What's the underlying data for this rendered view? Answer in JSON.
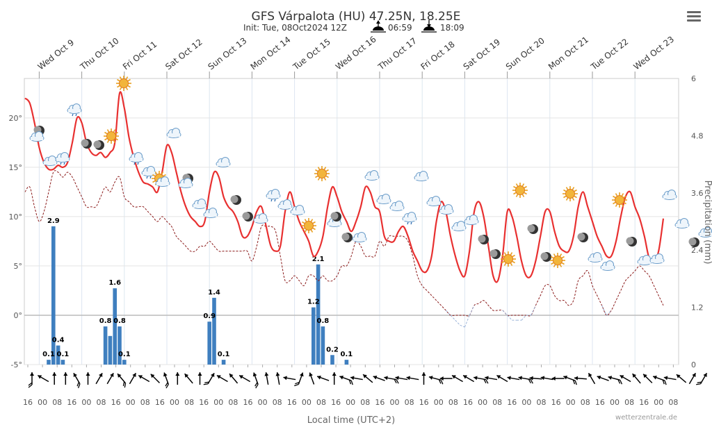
{
  "header": {
    "title": "GFS Várpalota (HU) 47.25N, 18.25E",
    "init": "Init: Tue, 08Oct2024 12Z",
    "sunrise": "06:59",
    "sunset": "18:09"
  },
  "footer": {
    "xlabel": "Local time (UTC+2)",
    "credit": "wetterzentrale.de"
  },
  "chart_data": {
    "type": "line",
    "title": "GFS Várpalota (HU) 47.25N, 18.25E",
    "xlabel": "Local time (UTC+2)",
    "ylabel_right": "Precipitation (mm)",
    "days": [
      "Wed Oct 9",
      "Thu Oct 10",
      "Fri Oct 11",
      "Sat Oct 12",
      "Sun Oct 13",
      "Mon Oct 14",
      "Tue Oct 15",
      "Wed Oct 16",
      "Thu Oct 17",
      "Fri Oct 18",
      "Sat Oct 19",
      "Sun Oct 20",
      "Mon Oct 21",
      "Tue Oct 22",
      "Wed Oct 23"
    ],
    "x_ticks": [
      "16",
      "00",
      "08",
      "16",
      "00",
      "08",
      "16",
      "00",
      "08",
      "16",
      "00",
      "08",
      "16",
      "00",
      "08",
      "16",
      "00",
      "08",
      "16",
      "00",
      "08",
      "16",
      "00",
      "08",
      "16",
      "00",
      "08",
      "16",
      "00",
      "08",
      "16",
      "00",
      "08",
      "16",
      "00",
      "08",
      "16",
      "00",
      "08",
      "16",
      "00",
      "08",
      "16",
      "00",
      "08"
    ],
    "temp_ticks": [
      "20°",
      "15°",
      "10°",
      "5°",
      "0°",
      "-5°"
    ],
    "temp_range": [
      -5,
      24
    ],
    "precip_ticks": [
      "6",
      "4.8",
      "3.6",
      "2.4",
      "1.2",
      "0"
    ],
    "precip_range": [
      0,
      6
    ],
    "series": [
      {
        "name": "Temperature",
        "values": [
          22,
          21.5,
          19.5,
          17,
          15.5,
          14.8,
          14.8,
          15.2,
          15,
          15.5,
          17.5,
          20,
          19.5,
          17.5,
          16.5,
          16.2,
          16.5,
          16,
          16.5,
          17.5,
          22.5,
          21,
          18,
          16,
          14.5,
          13.5,
          13.3,
          13,
          12.5,
          14.5,
          17.2,
          16.5,
          14.5,
          12.5,
          11,
          10,
          9.5,
          9,
          9.5,
          12.5,
          14.5,
          14,
          12,
          11,
          10.5,
          9.5,
          8,
          8,
          9,
          10.5,
          11,
          9,
          7,
          6.5,
          7,
          10.5,
          12.5,
          11,
          9.5,
          8.5,
          7.5,
          6,
          6.5,
          8,
          11,
          13,
          12,
          10.5,
          9.5,
          8.5,
          9.5,
          11,
          13,
          12.5,
          11,
          10.5,
          8,
          7.5,
          7.5,
          8.5,
          9,
          8,
          6.5,
          5.5,
          4.5,
          4.5,
          6,
          9.5,
          11.5,
          10.5,
          8,
          6,
          4.5,
          4,
          6.5,
          10.5,
          11.5,
          10,
          7,
          4,
          3.5,
          6,
          10.5,
          10,
          8,
          5.5,
          4,
          4,
          5.5,
          8,
          10.5,
          10.5,
          8.5,
          7,
          6.5,
          6.5,
          8,
          11,
          12.5,
          11,
          9.5,
          8,
          7,
          6,
          6,
          7.5,
          10,
          12,
          12.5,
          11,
          9.8,
          8,
          5.8,
          5.5,
          6.5,
          9.8
        ]
      },
      {
        "name": "Dewpoint",
        "values": [
          12.5,
          13,
          11,
          9.5,
          10.5,
          12.5,
          14.5,
          14.5,
          14,
          14.5,
          14,
          13,
          12,
          11,
          11,
          11,
          12,
          13,
          12.5,
          13.5,
          14,
          12,
          11.5,
          11,
          11,
          11,
          10.5,
          10,
          9.5,
          10,
          9.5,
          9,
          8,
          7.5,
          7,
          6.5,
          6.5,
          7,
          7,
          7.5,
          7,
          6.5,
          6.5,
          6.5,
          6.5,
          6.5,
          6.5,
          6.5,
          5.5,
          7,
          9,
          9,
          9,
          8.5,
          6,
          3.5,
          3.5,
          4,
          3.5,
          3,
          4,
          4,
          3.5,
          4,
          3.5,
          3.5,
          4,
          5,
          5,
          6,
          7.5,
          7,
          6,
          6,
          6,
          7.5,
          7,
          8,
          8,
          8,
          8,
          7.5,
          6,
          4,
          3,
          2.5,
          2,
          1.5,
          1,
          0.5,
          0,
          -0.5,
          -1,
          -1.2,
          0,
          1,
          1.2,
          1.5,
          1,
          0.5,
          0.5,
          0.5,
          0,
          -0.5,
          -0.5,
          -0.5,
          0,
          0,
          1,
          2,
          3,
          3,
          2,
          1.5,
          1.5,
          1,
          1.5,
          3.5,
          4,
          4.5,
          3,
          2,
          1,
          0,
          0.5,
          1.5,
          2.5,
          3.5,
          4,
          4.5,
          5,
          4.5,
          4,
          3,
          2,
          1
        ]
      },
      {
        "name": "Precipitation",
        "values": [
          0,
          0,
          0,
          0,
          0,
          0.1,
          2.9,
          0.4,
          0.1,
          0,
          0,
          0,
          0,
          0,
          0,
          0,
          0,
          0.8,
          0.6,
          1.6,
          0.8,
          0.1,
          0,
          0,
          0,
          0,
          0,
          0,
          0,
          0,
          0,
          0,
          0,
          0,
          0,
          0,
          0,
          0,
          0,
          0.9,
          1.4,
          0,
          0.1,
          0,
          0,
          0,
          0,
          0,
          0,
          0,
          0,
          0,
          0,
          0,
          0,
          0,
          0,
          0,
          0,
          0,
          0,
          1.2,
          2.1,
          0.8,
          0,
          0.2,
          0,
          0,
          0.1,
          0,
          0,
          0,
          0,
          0,
          0,
          0,
          0,
          0,
          0,
          0,
          0,
          0,
          0,
          0,
          0,
          0,
          0,
          0,
          0,
          0,
          0,
          0,
          0,
          0,
          0,
          0,
          0,
          0,
          0,
          0,
          0,
          0,
          0,
          0,
          0,
          0,
          0,
          0,
          0,
          0,
          0,
          0,
          0,
          0,
          0,
          0,
          0,
          0,
          0,
          0,
          0,
          0,
          0,
          0,
          0,
          0,
          0,
          0,
          0,
          0,
          0,
          0,
          0,
          0,
          0,
          0,
          0,
          0
        ]
      }
    ],
    "bar_labels": [
      {
        "index": 5,
        "label": "0.1"
      },
      {
        "index": 6,
        "label": "2.9"
      },
      {
        "index": 7,
        "label": "0.4"
      },
      {
        "index": 8,
        "label": "0.1"
      },
      {
        "index": 17,
        "label": "0.8"
      },
      {
        "index": 19,
        "label": "1.6"
      },
      {
        "index": 20,
        "label": "0.8"
      },
      {
        "index": 21,
        "label": "0.1"
      },
      {
        "index": 39,
        "label": "0.9"
      },
      {
        "index": 40,
        "label": "1.4"
      },
      {
        "index": 42,
        "label": "0.1"
      },
      {
        "index": 61,
        "label": "1.2"
      },
      {
        "index": 62,
        "label": "2.1"
      },
      {
        "index": 63,
        "label": "0.8"
      },
      {
        "index": 65,
        "label": "0.2"
      },
      {
        "index": 68,
        "label": "0.1"
      }
    ],
    "colors": {
      "temp": "#e83030",
      "dew": "#8b1a1a",
      "dew_below_zero": "#9bb3d8",
      "bar": "#3f7fbf"
    }
  }
}
